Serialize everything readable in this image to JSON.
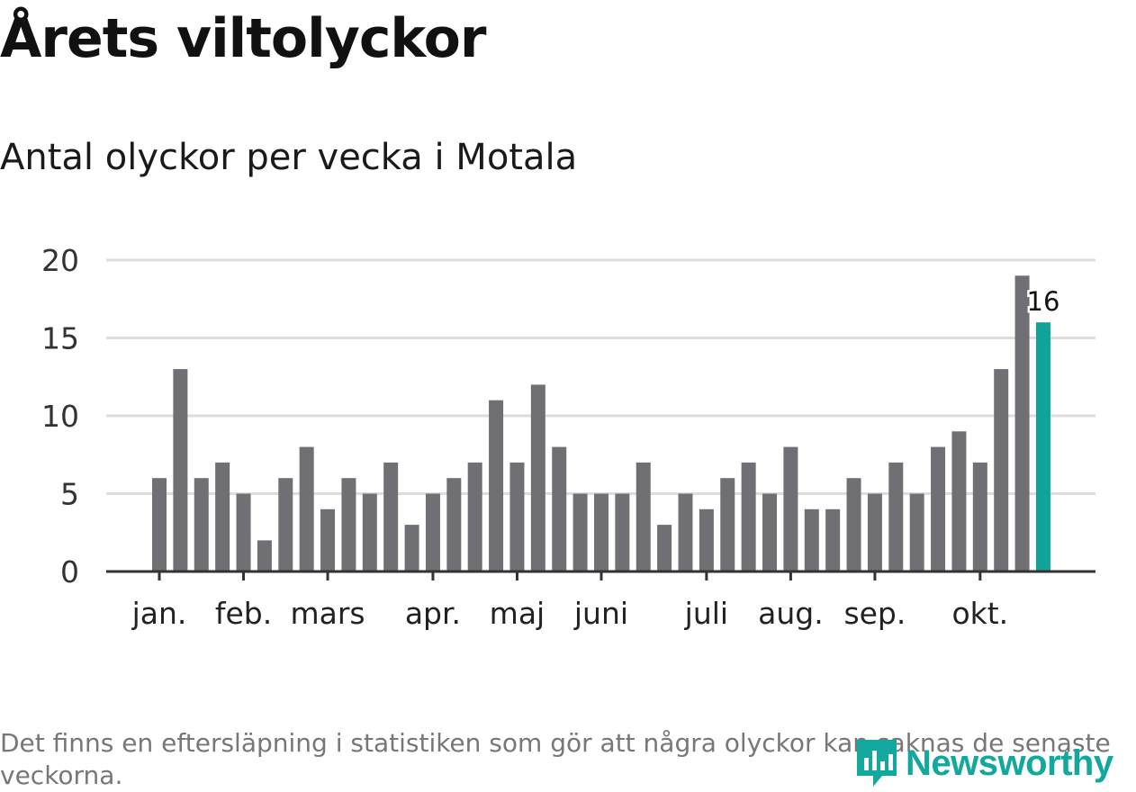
{
  "title": "Årets viltolyckor",
  "subtitle": "Antal olyckor per vecka i Motala",
  "footnote": "Det finns en eftersläpning i statistiken som gör att några olyckor kan saknas de senaste veckorna.",
  "logo": {
    "text": "Newsworthy",
    "icon": "newsworthy-logo-icon"
  },
  "colors": {
    "bar": "#706f74",
    "highlight": "#0fa497",
    "grid": "#dddddd",
    "axis": "#333333",
    "logo": "#13a89e"
  },
  "chart_data": {
    "type": "bar",
    "title": "Antal olyckor per vecka i Motala",
    "xlabel": "",
    "ylabel": "",
    "ylim": [
      0,
      20
    ],
    "yticks": [
      0,
      5,
      10,
      15,
      20
    ],
    "values": [
      6,
      13,
      6,
      7,
      5,
      2,
      6,
      8,
      4,
      6,
      5,
      7,
      3,
      5,
      6,
      7,
      11,
      7,
      12,
      8,
      5,
      5,
      5,
      7,
      3,
      5,
      4,
      6,
      7,
      5,
      8,
      4,
      4,
      6,
      5,
      7,
      5,
      8,
      9,
      7,
      13,
      19,
      16
    ],
    "highlight_index": 42,
    "highlight_label": "16",
    "month_labels": [
      {
        "label": "jan.",
        "bar_index": 0
      },
      {
        "label": "feb.",
        "bar_index": 4
      },
      {
        "label": "mars",
        "bar_index": 8
      },
      {
        "label": "apr.",
        "bar_index": 13
      },
      {
        "label": "maj",
        "bar_index": 17
      },
      {
        "label": "juni",
        "bar_index": 21
      },
      {
        "label": "juli",
        "bar_index": 26
      },
      {
        "label": "aug.",
        "bar_index": 30
      },
      {
        "label": "sep.",
        "bar_index": 34
      },
      {
        "label": "okt.",
        "bar_index": 39
      }
    ]
  }
}
